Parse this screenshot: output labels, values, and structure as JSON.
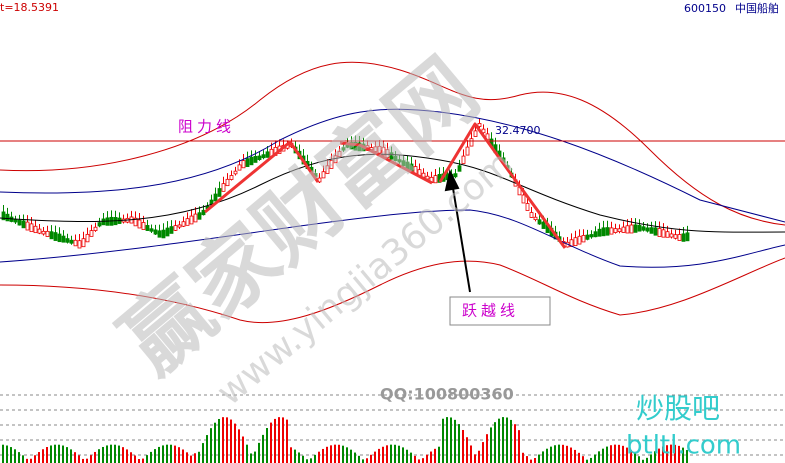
{
  "header": {
    "left": "t=18.5391",
    "code": "600150",
    "name": "中国船舶"
  },
  "annotations": {
    "resistance": "阻力线",
    "breakout": "跃越线",
    "level": "32.4700"
  },
  "watermark": {
    "main": "赢家财富网",
    "url": "www.yingjia360.com",
    "qq": "QQ:100800360",
    "brand": "炒股吧",
    "brand_url": "btltl.com"
  }
}
